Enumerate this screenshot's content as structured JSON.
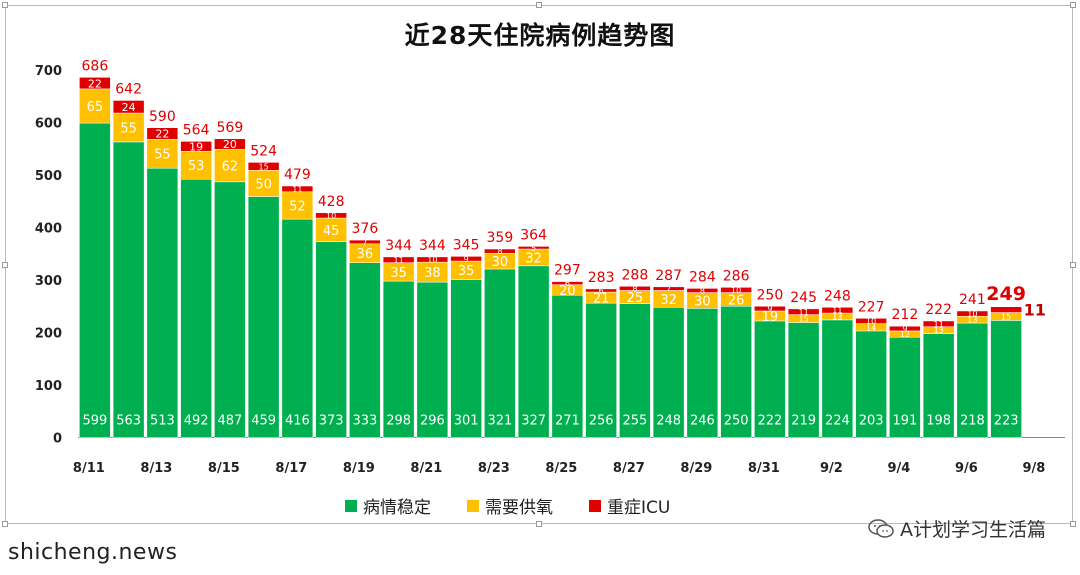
{
  "chart_data": {
    "type": "bar",
    "stacked": true,
    "title": "近28天住院病例趋势图",
    "ylim": [
      0,
      700
    ],
    "yticks": [
      0,
      100,
      200,
      300,
      400,
      500,
      600,
      700
    ],
    "x_tick_labels": [
      "8/11",
      "8/13",
      "8/15",
      "8/17",
      "8/19",
      "8/21",
      "8/23",
      "8/25",
      "8/27",
      "8/29",
      "8/31",
      "9/2",
      "9/4",
      "9/6",
      "9/8"
    ],
    "categories": [
      "8/11",
      "8/12",
      "8/13",
      "8/14",
      "8/15",
      "8/16",
      "8/17",
      "8/18",
      "8/19",
      "8/20",
      "8/21",
      "8/22",
      "8/23",
      "8/24",
      "8/25",
      "8/26",
      "8/27",
      "8/28",
      "8/29",
      "8/30",
      "8/31",
      "9/1",
      "9/2",
      "9/3",
      "9/4",
      "9/5",
      "9/6",
      "9/7"
    ],
    "series": [
      {
        "name": "病情稳定",
        "color": "#00b050",
        "values": [
          599,
          563,
          513,
          492,
          487,
          459,
          416,
          373,
          333,
          298,
          296,
          301,
          321,
          327,
          271,
          256,
          255,
          248,
          246,
          250,
          222,
          219,
          224,
          203,
          191,
          198,
          218,
          223
        ]
      },
      {
        "name": "需要供氧",
        "color": "#ffc000",
        "values": [
          65,
          55,
          55,
          53,
          62,
          50,
          52,
          45,
          36,
          35,
          38,
          35,
          30,
          32,
          20,
          21,
          25,
          32,
          30,
          26,
          19,
          15,
          13,
          14,
          12,
          13,
          13,
          15
        ]
      },
      {
        "name": "重症ICU",
        "color": "#e00000",
        "values": [
          22,
          24,
          22,
          19,
          20,
          15,
          11,
          10,
          7,
          11,
          10,
          9,
          8,
          5,
          6,
          6,
          8,
          7,
          8,
          10,
          9,
          11,
          11,
          10,
          9,
          11,
          10,
          11
        ]
      }
    ],
    "totals": [
      686,
      642,
      590,
      564,
      569,
      524,
      479,
      428,
      376,
      344,
      344,
      345,
      359,
      364,
      297,
      283,
      288,
      287,
      284,
      286,
      250,
      245,
      248,
      227,
      212,
      222,
      241,
      249
    ],
    "legend_position": "bottom",
    "grid": false
  },
  "legend": [
    {
      "label": "病情稳定",
      "color": "#00b050"
    },
    {
      "label": "需要供氧",
      "color": "#ffc000"
    },
    {
      "label": "重症ICU",
      "color": "#e00000"
    }
  ],
  "watermark": "A计划学习生活篇",
  "site_text": "shicheng.news"
}
